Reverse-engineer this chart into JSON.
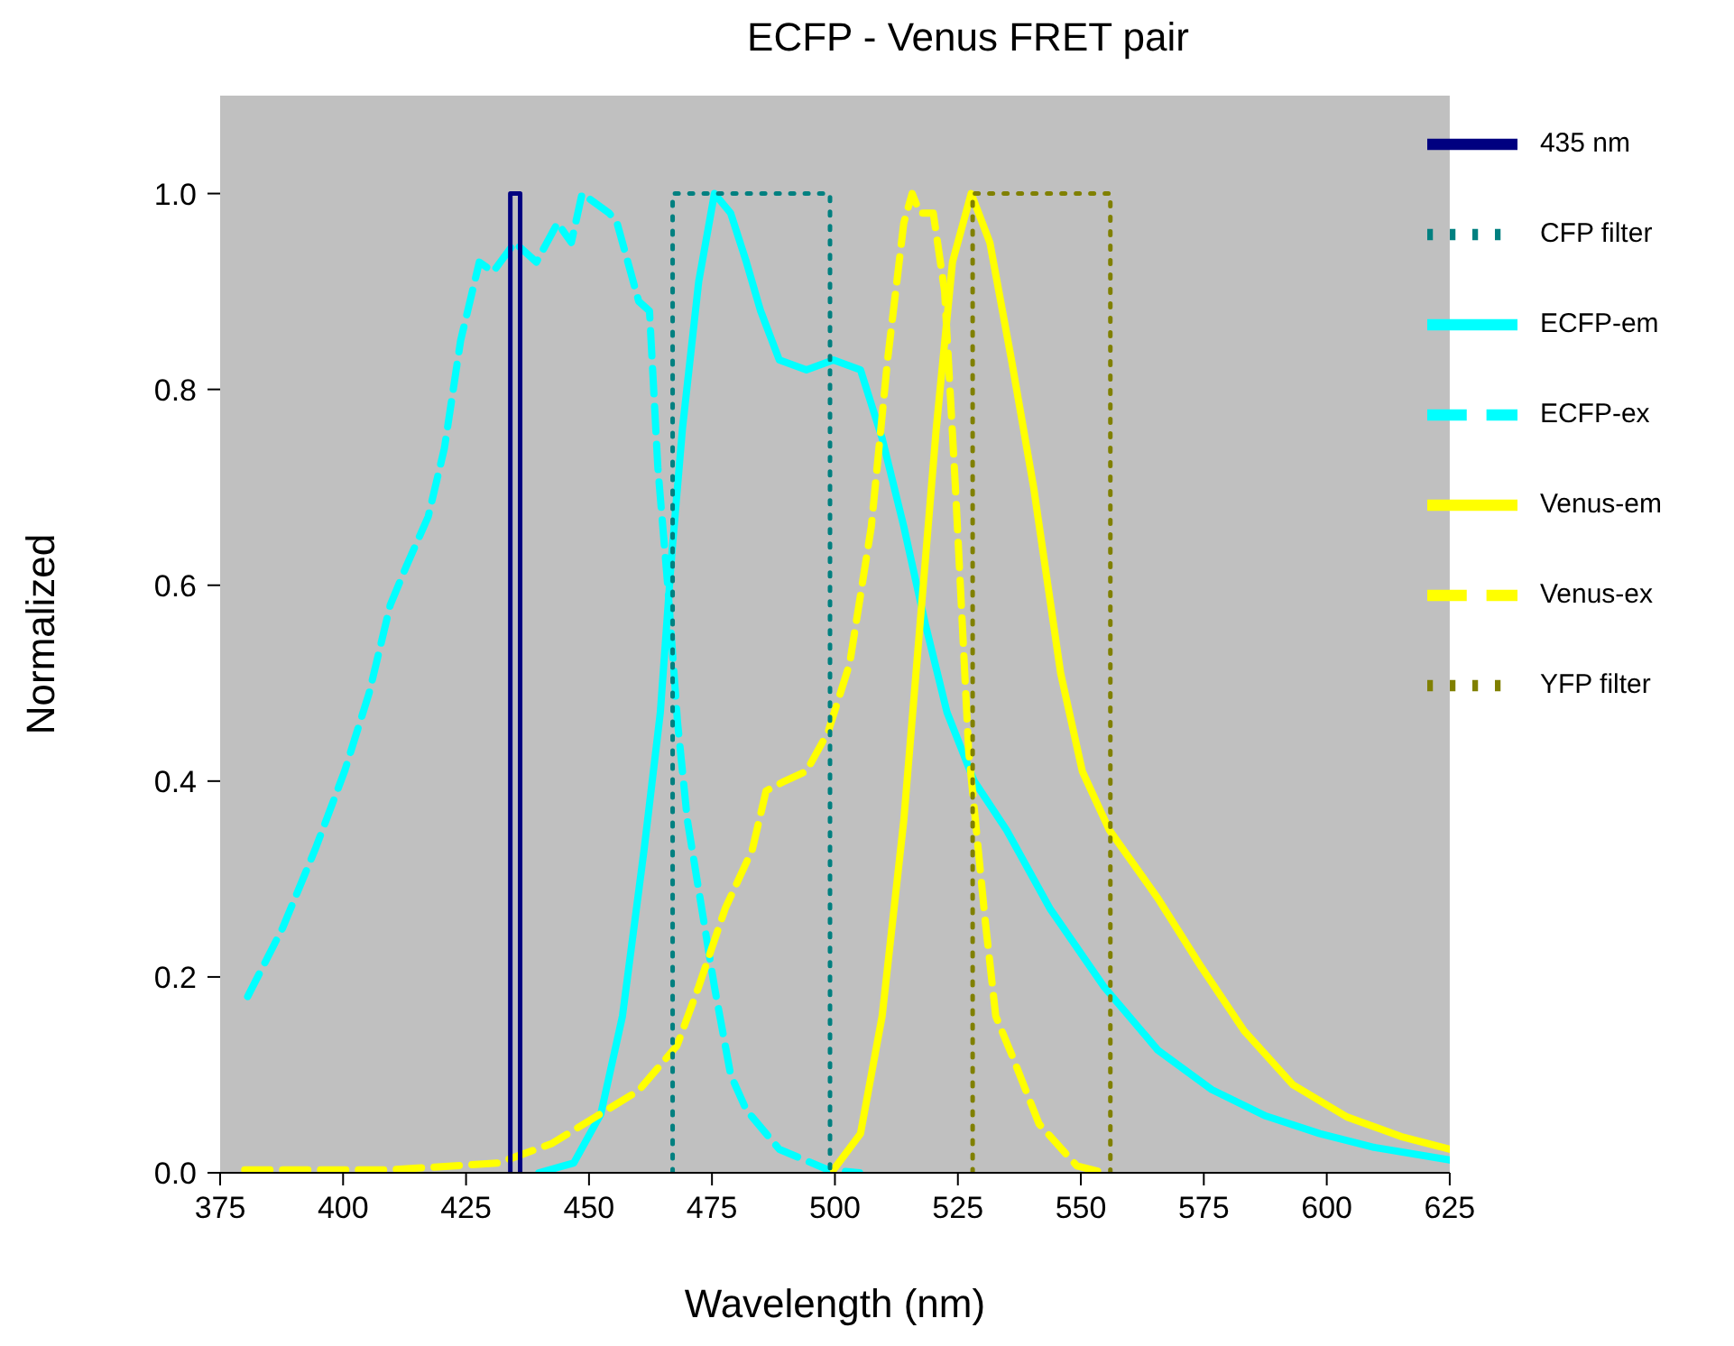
{
  "chart_data": {
    "type": "line",
    "title": "ECFP - Venus FRET pair",
    "xlabel": "Wavelength (nm)",
    "ylabel": "Normalized",
    "xlim": [
      375,
      625
    ],
    "xticks": [
      375,
      400,
      425,
      450,
      475,
      500,
      525,
      550,
      575,
      600,
      625
    ],
    "ylim": [
      0,
      1.1
    ],
    "yticks": [
      {
        "value": 0,
        "label": "0.0"
      },
      {
        "value": 0.2,
        "label": "0.2"
      },
      {
        "value": 0.4,
        "label": "0.4"
      },
      {
        "value": 0.6,
        "label": "0.6"
      },
      {
        "value": 0.8,
        "label": "0.8"
      },
      {
        "value": 1,
        "label": "1.0"
      }
    ],
    "grid": false,
    "legend": "top right",
    "marker": "none",
    "series": [
      {
        "name": "ECFP-ex",
        "color": "#00ffff",
        "line_style": "dashed",
        "x": [
          380.6,
          387.7,
          394.3,
          400.3,
          405.3,
          409.6,
          412.9,
          417.3,
          420.6,
          423.9,
          427.7,
          430.5,
          434.9,
          439.3,
          443.6,
          446.4,
          448.6,
          454.1,
          455.7,
          460.1,
          462.3,
          464,
          466,
          468,
          470,
          475.5,
          478.8,
          482,
          488.7,
          498.6,
          505
        ],
        "values": [
          0.18,
          0.25,
          0.33,
          0.41,
          0.49,
          0.58,
          0.62,
          0.67,
          0.74,
          0.85,
          0.93,
          0.92,
          0.95,
          0.93,
          0.97,
          0.95,
          1.0,
          0.98,
          0.97,
          0.89,
          0.88,
          0.72,
          0.6,
          0.46,
          0.36,
          0.19,
          0.1,
          0.064,
          0.024,
          0.003,
          0
        ]
      },
      {
        "name": "ECFP-em",
        "color": "#00ffff",
        "line_style": "solid",
        "x": [
          439.8,
          446.9,
          452.4,
          456.8,
          461.2,
          464.5,
          466.8,
          469,
          472.3,
          475.5,
          478.8,
          482,
          484.9,
          488.7,
          494.2,
          499.7,
          505.2,
          509.6,
          514,
          518.4,
          522.8,
          528.3,
          534.9,
          543.7,
          554.7,
          565.7,
          576.6,
          587.6,
          598.6,
          609.6,
          625
        ],
        "values": [
          0,
          0.01,
          0.06,
          0.16,
          0.33,
          0.47,
          0.63,
          0.76,
          0.91,
          1.0,
          0.98,
          0.93,
          0.88,
          0.83,
          0.82,
          0.83,
          0.82,
          0.75,
          0.66,
          0.56,
          0.47,
          0.4,
          0.35,
          0.27,
          0.19,
          0.125,
          0.085,
          0.058,
          0.04,
          0.026,
          0.013
        ]
      },
      {
        "name": "Venus-ex",
        "color": "#ffff00",
        "line_style": "dashed",
        "x": [
          380,
          409.6,
          431.6,
          442.5,
          451.3,
          460.1,
          467.9,
          472.3,
          477.7,
          483.2,
          486,
          489.8,
          494.2,
          498.6,
          503,
          507.4,
          510.7,
          514,
          515.7,
          517.3,
          520,
          522.3,
          524.5,
          527.2,
          530.5,
          532.7,
          536,
          541.5,
          549.2,
          554.7
        ],
        "values": [
          0.003,
          0.003,
          0.01,
          0.03,
          0.057,
          0.084,
          0.13,
          0.19,
          0.27,
          0.33,
          0.39,
          0.4,
          0.41,
          0.45,
          0.52,
          0.66,
          0.83,
          0.97,
          1.0,
          0.98,
          0.98,
          0.9,
          0.7,
          0.43,
          0.26,
          0.16,
          0.12,
          0.05,
          0.007,
          0
        ]
      },
      {
        "name": "Venus-em",
        "color": "#ffff00",
        "line_style": "solid",
        "x": [
          499.7,
          505.2,
          509.6,
          514,
          517.3,
          520.6,
          523.9,
          527.7,
          531.5,
          535.9,
          540.4,
          545.9,
          550.3,
          555.8,
          565.7,
          574.5,
          583.2,
          593.1,
          604.1,
          615.1,
          625
        ],
        "values": [
          0.003,
          0.04,
          0.16,
          0.36,
          0.56,
          0.76,
          0.93,
          1.0,
          0.95,
          0.83,
          0.7,
          0.51,
          0.41,
          0.35,
          0.28,
          0.21,
          0.145,
          0.09,
          0.057,
          0.037,
          0.024
        ]
      },
      {
        "name": "435 nm",
        "color": "#000080",
        "line_style": "solid",
        "x": [
          434,
          434,
          436,
          436
        ],
        "values": [
          0,
          1,
          1,
          0
        ]
      },
      {
        "name": "CFP filter",
        "color": "#008080",
        "line_style": "dotted",
        "x": [
          467,
          467,
          499,
          499
        ],
        "values": [
          0,
          1,
          1,
          0
        ]
      },
      {
        "name": "YFP filter",
        "color": "#808000",
        "line_style": "dotted",
        "x": [
          528,
          528,
          556,
          556
        ],
        "values": [
          0,
          1,
          1,
          0
        ]
      }
    ]
  }
}
